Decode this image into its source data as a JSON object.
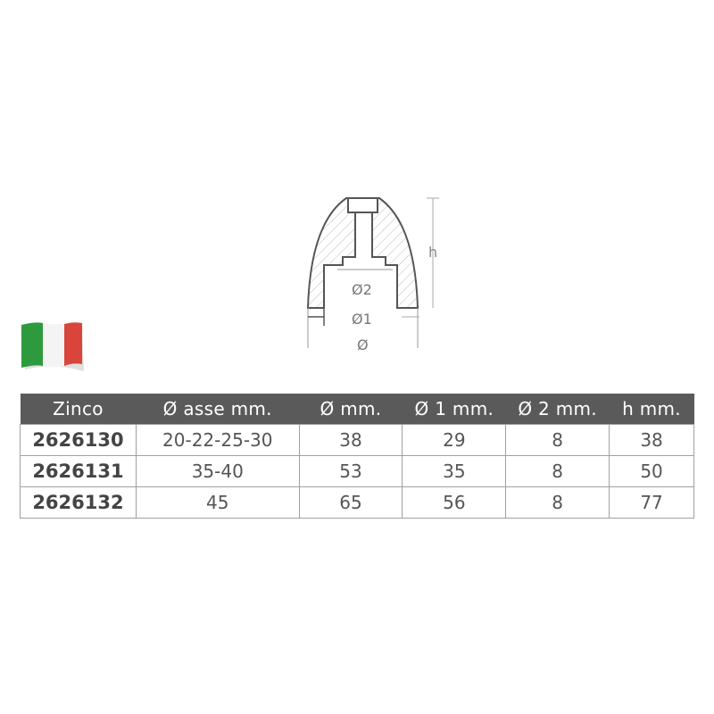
{
  "drawing": {
    "label_h": "h",
    "label_d2": "Ø2",
    "label_d1": "Ø1",
    "label_d": "Ø"
  },
  "flag": {
    "colors": [
      "#2e9a3e",
      "#ffffff",
      "#d9453a"
    ]
  },
  "table": {
    "headers": [
      "Zinco",
      "Ø asse mm.",
      "Ø mm.",
      "Ø 1 mm.",
      "Ø 2 mm.",
      "h mm."
    ],
    "rows": [
      [
        "2626130",
        "20-22-25-30",
        "38",
        "29",
        "8",
        "38"
      ],
      [
        "2626131",
        "35-40",
        "53",
        "35",
        "8",
        "50"
      ],
      [
        "2626132",
        "45",
        "65",
        "56",
        "8",
        "77"
      ]
    ]
  }
}
